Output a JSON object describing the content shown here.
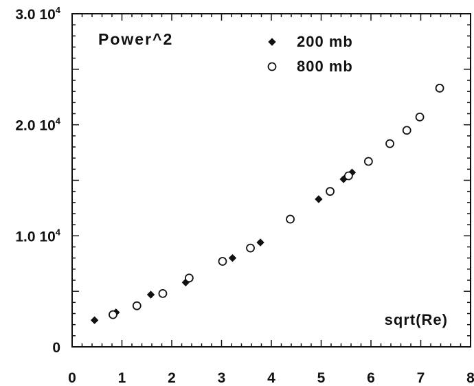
{
  "chart_data": {
    "type": "scatter",
    "title": "Power^2",
    "xlabel": "sqrt(Re)",
    "ylabel": "",
    "xlim": [
      0,
      8
    ],
    "ylim": [
      0,
      30000
    ],
    "x_ticks": [
      "0",
      "1",
      "2",
      "3",
      "4",
      "5",
      "6",
      "7",
      "8"
    ],
    "y_ticks": [
      {
        "value": 0,
        "mantissa": "0",
        "exponent": ""
      },
      {
        "value": 10000,
        "mantissa": "1.0 10",
        "exponent": "4"
      },
      {
        "value": 20000,
        "mantissa": "2.0 10",
        "exponent": "4"
      },
      {
        "value": 30000,
        "mantissa": "3.0 10",
        "exponent": "4"
      }
    ],
    "legend_position": "top-right",
    "series": [
      {
        "name": "200 mb",
        "marker": "filled-diamond",
        "points": [
          [
            0.45,
            2400
          ],
          [
            0.88,
            3100
          ],
          [
            1.58,
            4700
          ],
          [
            2.28,
            5800
          ],
          [
            3.22,
            8000
          ],
          [
            3.78,
            9400
          ],
          [
            4.95,
            13300
          ],
          [
            5.45,
            15100
          ],
          [
            5.62,
            15700
          ]
        ]
      },
      {
        "name": "800 mb",
        "marker": "open-circle",
        "points": [
          [
            0.82,
            2900
          ],
          [
            1.3,
            3700
          ],
          [
            1.82,
            4800
          ],
          [
            2.35,
            6200
          ],
          [
            3.02,
            7700
          ],
          [
            3.58,
            8900
          ],
          [
            4.38,
            11500
          ],
          [
            5.18,
            14000
          ],
          [
            5.55,
            15400
          ],
          [
            5.95,
            16700
          ],
          [
            6.38,
            18300
          ],
          [
            6.72,
            19500
          ],
          [
            6.98,
            20700
          ],
          [
            7.38,
            23300
          ]
        ]
      }
    ]
  }
}
